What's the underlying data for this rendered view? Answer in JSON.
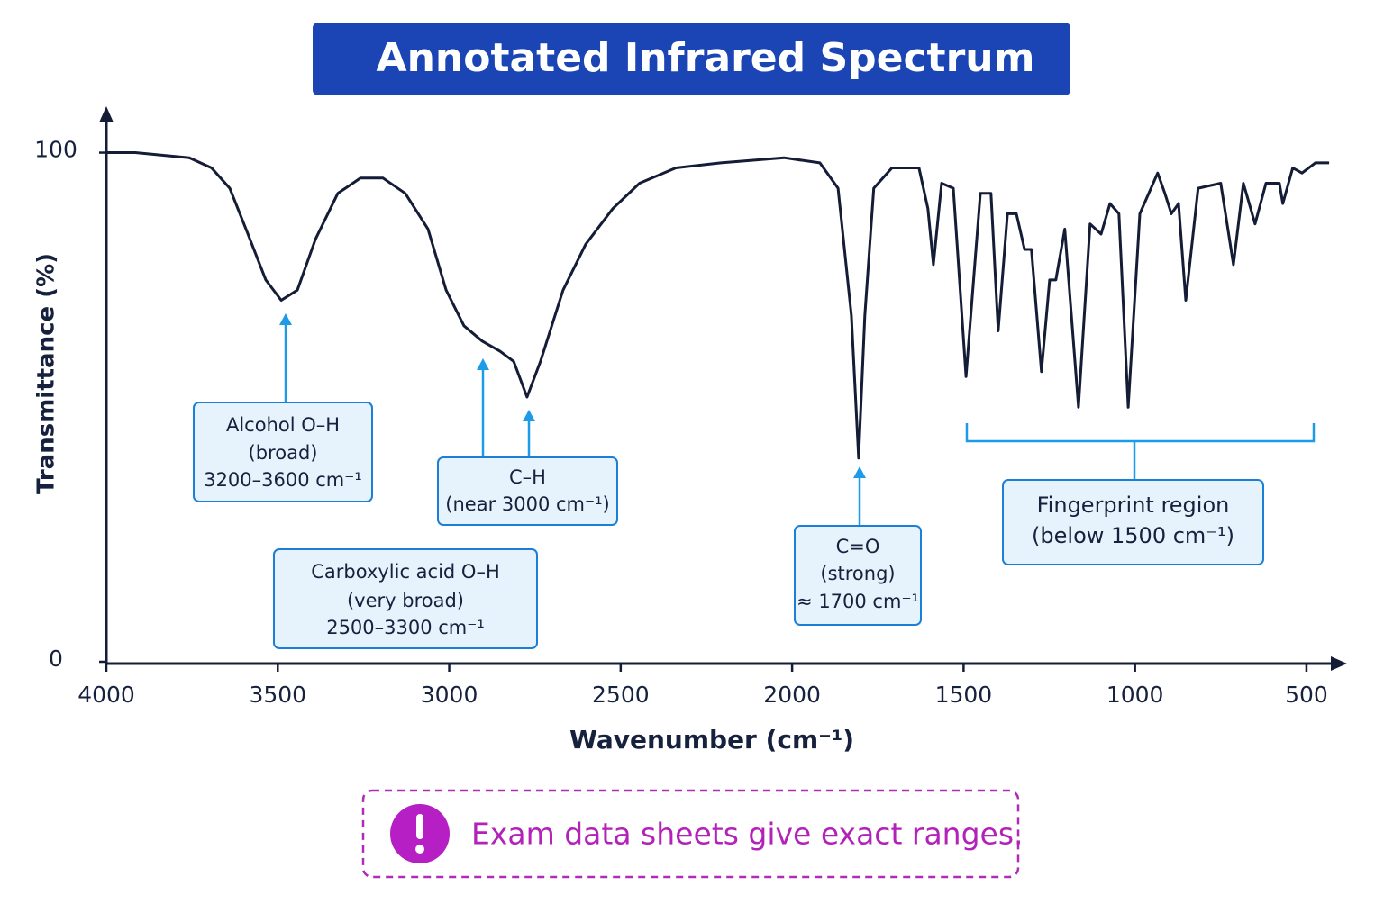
{
  "chart_data": {
    "type": "line",
    "title": "Annotated Infrared Spectrum",
    "x_label": "Wavenumber (cm⁻¹)",
    "y_label": "Transmittance (%)",
    "xlim": [
      4000,
      400
    ],
    "ylim": [
      0,
      110
    ],
    "xticks": [
      4000,
      3500,
      3000,
      2500,
      2000,
      1500,
      1000,
      500
    ],
    "yticks": [
      0,
      100
    ],
    "series": [
      {
        "color": "#141c36",
        "x": [
          4000,
          3916,
          3837,
          3758,
          3693,
          3640,
          3587,
          3535,
          3490,
          3443,
          3390,
          3325,
          3259,
          3193,
          3128,
          3062,
          3009,
          2957,
          2904,
          2852,
          2812,
          2773,
          2734,
          2668,
          2602,
          2523,
          2445,
          2339,
          2208,
          2024,
          1919,
          1866,
          1827,
          1806,
          1788,
          1762,
          1709,
          1630,
          1604,
          1588,
          1564,
          1530,
          1493,
          1451,
          1420,
          1399,
          1372,
          1346,
          1322,
          1302,
          1273,
          1249,
          1231,
          1205,
          1165,
          1131,
          1099,
          1073,
          1047,
          1020,
          986,
          934,
          913,
          894,
          873,
          852,
          816,
          750,
          713,
          684,
          650,
          618,
          579,
          569,
          540,
          513,
          474,
          434
        ],
        "values": [
          100,
          100,
          99.5,
          99,
          97,
          93,
          84,
          75,
          71,
          73,
          83,
          92,
          95,
          95,
          92,
          85,
          73,
          66,
          63,
          61,
          59,
          52,
          59,
          73,
          82,
          89,
          94,
          97,
          98,
          99,
          98,
          93,
          68,
          40,
          68,
          93,
          97,
          97,
          89,
          78,
          94,
          93,
          56,
          92,
          92,
          65,
          88,
          88,
          81,
          81,
          57,
          75,
          75,
          85,
          50,
          86,
          84,
          90,
          88,
          50,
          88,
          96,
          92,
          88,
          90,
          71,
          93,
          94,
          78,
          94,
          86,
          94,
          94,
          90,
          97,
          96,
          98,
          98
        ]
      }
    ],
    "annotations": [
      {
        "lines": [
          "Alcohol O–H",
          "(broad)",
          "3200–3600 cm⁻¹"
        ]
      },
      {
        "lines": [
          "C–H",
          "(near 3000 cm⁻¹)"
        ]
      },
      {
        "lines": [
          "Carboxylic acid O–H",
          "(very broad)",
          "2500–3300 cm⁻¹"
        ]
      },
      {
        "lines": [
          "C=O",
          "(strong)",
          "≈ 1700 cm⁻¹"
        ]
      },
      {
        "lines": [
          "Fingerprint region",
          "(below 1500 cm⁻¹)"
        ]
      }
    ],
    "note": "Exam data sheets give exact ranges."
  }
}
